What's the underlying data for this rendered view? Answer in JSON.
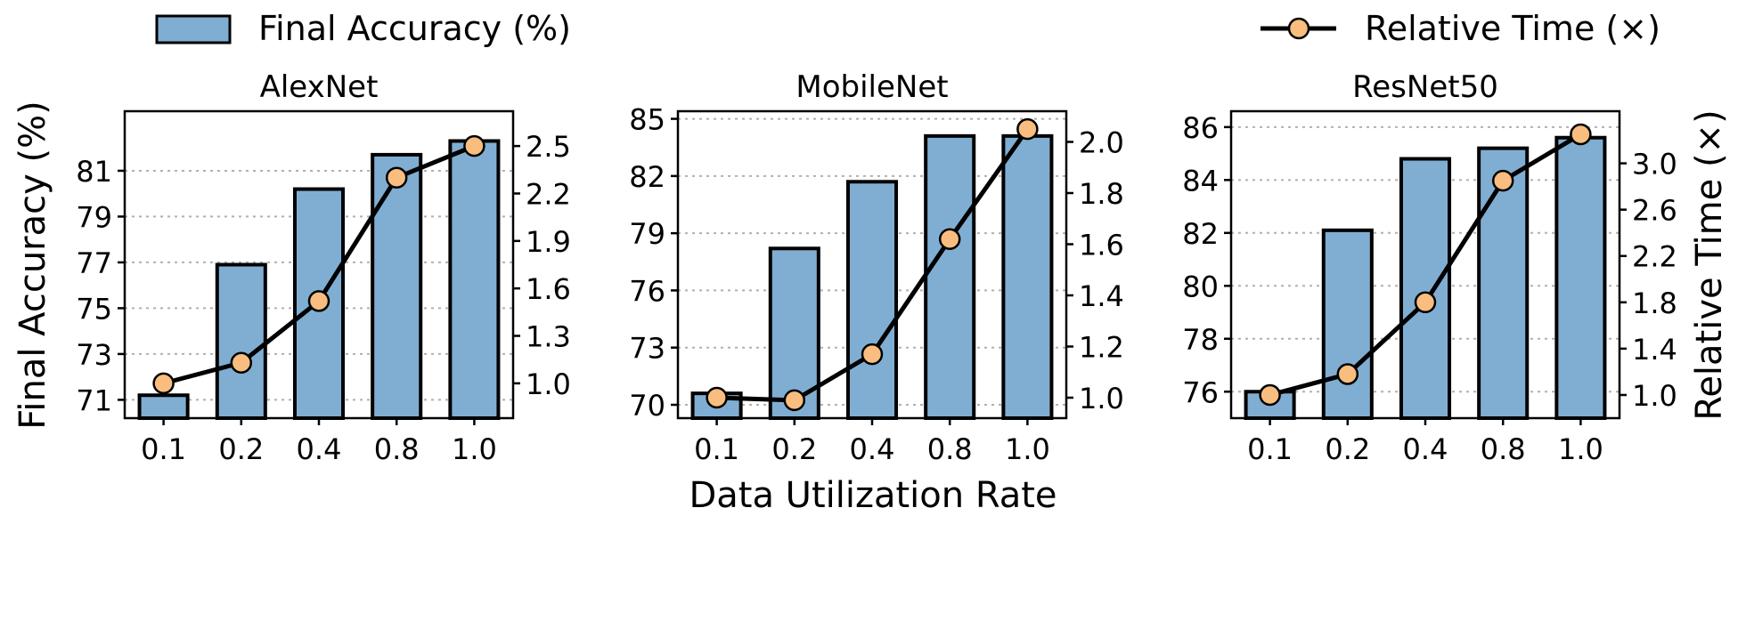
{
  "legend": {
    "bar_label": "Final Accuracy (%)",
    "line_label": "Relative Time (×)"
  },
  "figure": {
    "ylabel_left": "Final Accuracy (%)",
    "ylabel_right": "Relative Time (×)",
    "xlabel": "Data Utilization Rate"
  },
  "colors": {
    "bar_fill": "#80aed3",
    "bar_edge": "#000000",
    "line": "#000000",
    "marker_fill": "#f9bd7f",
    "grid": "#b0b0b0"
  },
  "chart_data": [
    {
      "type": "bar",
      "title": "AlexNet",
      "categories": [
        "0.1",
        "0.2",
        "0.4",
        "0.8",
        "1.0"
      ],
      "series": [
        {
          "name": "Final Accuracy (%)",
          "axis": "left",
          "type": "bar",
          "values": [
            71.2,
            76.9,
            80.2,
            81.7,
            82.3
          ]
        },
        {
          "name": "Relative Time (×)",
          "axis": "right",
          "type": "line",
          "values": [
            1.0,
            1.13,
            1.52,
            2.3,
            2.5
          ]
        }
      ],
      "ylim_left": [
        70.2,
        83.6
      ],
      "yticks_left": [
        71,
        73,
        75,
        77,
        79,
        81
      ],
      "ylim_right": [
        0.78,
        2.72
      ],
      "yticks_right": [
        1.0,
        1.3,
        1.6,
        1.9,
        2.2,
        2.5
      ],
      "grid": true
    },
    {
      "type": "bar",
      "title": "MobileNet",
      "categories": [
        "0.1",
        "0.2",
        "0.4",
        "0.8",
        "1.0"
      ],
      "series": [
        {
          "name": "Final Accuracy (%)",
          "axis": "left",
          "type": "bar",
          "values": [
            70.6,
            78.2,
            81.7,
            84.1,
            84.1
          ]
        },
        {
          "name": "Relative Time (×)",
          "axis": "right",
          "type": "line",
          "values": [
            1.0,
            0.99,
            1.17,
            1.62,
            2.05
          ]
        }
      ],
      "ylim_left": [
        69.3,
        85.4
      ],
      "yticks_left": [
        70,
        73,
        76,
        79,
        82,
        85
      ],
      "ylim_right": [
        0.92,
        2.12
      ],
      "yticks_right": [
        1.0,
        1.2,
        1.4,
        1.6,
        1.8,
        2.0
      ],
      "grid": true
    },
    {
      "type": "bar",
      "title": "ResNet50",
      "categories": [
        "0.1",
        "0.2",
        "0.4",
        "0.8",
        "1.0"
      ],
      "series": [
        {
          "name": "Final Accuracy (%)",
          "axis": "left",
          "type": "bar",
          "values": [
            76.0,
            82.1,
            84.8,
            85.2,
            85.6
          ]
        },
        {
          "name": "Relative Time (×)",
          "axis": "right",
          "type": "line",
          "values": [
            1.0,
            1.18,
            1.8,
            2.85,
            3.25
          ]
        }
      ],
      "ylim_left": [
        75.0,
        86.6
      ],
      "yticks_left": [
        76,
        78,
        80,
        82,
        84,
        86
      ],
      "ylim_right": [
        0.8,
        3.45
      ],
      "yticks_right": [
        1.0,
        1.4,
        1.8,
        2.2,
        2.6,
        3.0
      ],
      "grid": true
    }
  ]
}
